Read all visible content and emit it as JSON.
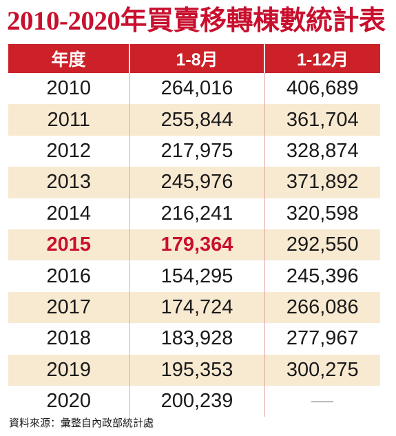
{
  "chart_data": {
    "type": "table",
    "title": "2010-2020年買賣移轉棟數統計表",
    "columns": [
      "年度",
      "1-8月",
      "1-12月"
    ],
    "rows": [
      {
        "year": "2010",
        "jan_aug": "264,016",
        "jan_dec": "406,689"
      },
      {
        "year": "2011",
        "jan_aug": "255,844",
        "jan_dec": "361,704"
      },
      {
        "year": "2012",
        "jan_aug": "217,975",
        "jan_dec": "328,874"
      },
      {
        "year": "2013",
        "jan_aug": "245,976",
        "jan_dec": "371,892"
      },
      {
        "year": "2014",
        "jan_aug": "216,241",
        "jan_dec": "320,598"
      },
      {
        "year": "2015",
        "jan_aug": "179,364",
        "jan_dec": "292,550"
      },
      {
        "year": "2016",
        "jan_aug": "154,295",
        "jan_dec": "245,396"
      },
      {
        "year": "2017",
        "jan_aug": "174,724",
        "jan_dec": "266,086"
      },
      {
        "year": "2018",
        "jan_aug": "183,928",
        "jan_dec": "277,967"
      },
      {
        "year": "2019",
        "jan_aug": "195,353",
        "jan_dec": "300,275"
      },
      {
        "year": "2020",
        "jan_aug": "200,239",
        "jan_dec": null
      }
    ],
    "highlight_row": "2015",
    "source": "資料來源：彙整自內政部統計處"
  },
  "colors": {
    "accent": "#c8102e",
    "header_bg": "#cc2128",
    "stripe": "#f8e9d1",
    "text": "#1a1a1a"
  }
}
